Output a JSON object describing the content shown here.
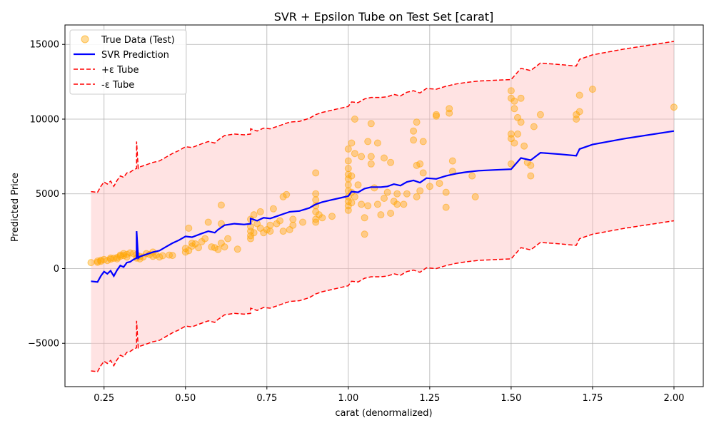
{
  "chart_data": {
    "type": "scatter",
    "title": "SVR + Epsilon Tube on Test Set [carat]",
    "xlabel": "carat (denormalized)",
    "ylabel": "Predicted Price",
    "xlim": [
      0.13,
      2.09
    ],
    "ylim": [
      -7900,
      16300
    ],
    "xticks": [
      0.25,
      0.5,
      0.75,
      1.0,
      1.25,
      1.5,
      1.75,
      2.0
    ],
    "xtick_labels": [
      "0.25",
      "0.50",
      "0.75",
      "1.00",
      "1.25",
      "1.50",
      "1.75",
      "2.00"
    ],
    "yticks": [
      -5000,
      0,
      5000,
      10000,
      15000
    ],
    "ytick_labels": [
      "−5000",
      "0",
      "5000",
      "10000",
      "15000"
    ],
    "grid": true,
    "legend_position": "top-left",
    "epsilon": 6000,
    "colors": {
      "points": "#ffa500",
      "prediction": "#0000ff",
      "tube": "#ff0000",
      "tube_fill": "#ffc0c0"
    },
    "series": [
      {
        "name": "True Data (Test)",
        "kind": "scatter",
        "points": [
          [
            0.21,
            400
          ],
          [
            0.23,
            420
          ],
          [
            0.23,
            500
          ],
          [
            0.24,
            560
          ],
          [
            0.24,
            480
          ],
          [
            0.25,
            610
          ],
          [
            0.26,
            540
          ],
          [
            0.27,
            700
          ],
          [
            0.27,
            620
          ],
          [
            0.28,
            690
          ],
          [
            0.29,
            740
          ],
          [
            0.29,
            650
          ],
          [
            0.3,
            900
          ],
          [
            0.3,
            820
          ],
          [
            0.31,
            870
          ],
          [
            0.31,
            1000
          ],
          [
            0.32,
            950
          ],
          [
            0.32,
            780
          ],
          [
            0.33,
            1050
          ],
          [
            0.34,
            1000
          ],
          [
            0.35,
            920
          ],
          [
            0.35,
            700
          ],
          [
            0.36,
            810
          ],
          [
            0.36,
            650
          ],
          [
            0.37,
            780
          ],
          [
            0.38,
            1000
          ],
          [
            0.39,
            940
          ],
          [
            0.4,
            820
          ],
          [
            0.4,
            1100
          ],
          [
            0.41,
            900
          ],
          [
            0.42,
            780
          ],
          [
            0.43,
            860
          ],
          [
            0.45,
            900
          ],
          [
            0.46,
            880
          ],
          [
            0.5,
            1100
          ],
          [
            0.5,
            1350
          ],
          [
            0.51,
            1200
          ],
          [
            0.51,
            2700
          ],
          [
            0.52,
            1700
          ],
          [
            0.52,
            1500
          ],
          [
            0.53,
            1650
          ],
          [
            0.54,
            1400
          ],
          [
            0.55,
            1800
          ],
          [
            0.56,
            2000
          ],
          [
            0.57,
            3100
          ],
          [
            0.58,
            1450
          ],
          [
            0.59,
            1400
          ],
          [
            0.6,
            1280
          ],
          [
            0.61,
            4250
          ],
          [
            0.61,
            3000
          ],
          [
            0.61,
            1700
          ],
          [
            0.62,
            1450
          ],
          [
            0.63,
            2000
          ],
          [
            0.66,
            1300
          ],
          [
            0.7,
            2000
          ],
          [
            0.7,
            2200
          ],
          [
            0.7,
            2500
          ],
          [
            0.7,
            2800
          ],
          [
            0.7,
            3300
          ],
          [
            0.71,
            2400
          ],
          [
            0.71,
            3600
          ],
          [
            0.72,
            3000
          ],
          [
            0.73,
            2700
          ],
          [
            0.73,
            3800
          ],
          [
            0.74,
            2400
          ],
          [
            0.75,
            2600
          ],
          [
            0.76,
            2500
          ],
          [
            0.76,
            2900
          ],
          [
            0.77,
            4000
          ],
          [
            0.78,
            3000
          ],
          [
            0.79,
            3200
          ],
          [
            0.8,
            2500
          ],
          [
            0.8,
            4800
          ],
          [
            0.81,
            4950
          ],
          [
            0.82,
            2600
          ],
          [
            0.83,
            3300
          ],
          [
            0.83,
            2900
          ],
          [
            0.86,
            3100
          ],
          [
            0.9,
            3100
          ],
          [
            0.9,
            3300
          ],
          [
            0.9,
            3800
          ],
          [
            0.9,
            4200
          ],
          [
            0.9,
            4600
          ],
          [
            0.9,
            5000
          ],
          [
            0.9,
            6400
          ],
          [
            0.91,
            3600
          ],
          [
            0.92,
            3400
          ],
          [
            0.95,
            3500
          ],
          [
            1.0,
            3900
          ],
          [
            1.0,
            4200
          ],
          [
            1.0,
            4500
          ],
          [
            1.0,
            4800
          ],
          [
            1.0,
            5200
          ],
          [
            1.0,
            5600
          ],
          [
            1.0,
            6000
          ],
          [
            1.0,
            6300
          ],
          [
            1.0,
            6700
          ],
          [
            1.0,
            7200
          ],
          [
            1.0,
            8000
          ],
          [
            1.01,
            4400
          ],
          [
            1.01,
            5100
          ],
          [
            1.01,
            6200
          ],
          [
            1.01,
            8400
          ],
          [
            1.02,
            4800
          ],
          [
            1.02,
            7700
          ],
          [
            1.02,
            10000
          ],
          [
            1.03,
            5600
          ],
          [
            1.04,
            7500
          ],
          [
            1.04,
            4300
          ],
          [
            1.05,
            3400
          ],
          [
            1.05,
            2300
          ],
          [
            1.06,
            8500
          ],
          [
            1.06,
            4200
          ],
          [
            1.07,
            7000
          ],
          [
            1.07,
            9700
          ],
          [
            1.07,
            7500
          ],
          [
            1.08,
            5400
          ],
          [
            1.09,
            4300
          ],
          [
            1.09,
            8400
          ],
          [
            1.1,
            3600
          ],
          [
            1.11,
            4700
          ],
          [
            1.11,
            7400
          ],
          [
            1.12,
            5100
          ],
          [
            1.13,
            3700
          ],
          [
            1.13,
            7100
          ],
          [
            1.14,
            4500
          ],
          [
            1.15,
            5000
          ],
          [
            1.15,
            4300
          ],
          [
            1.17,
            4300
          ],
          [
            1.18,
            5000
          ],
          [
            1.2,
            8600
          ],
          [
            1.2,
            9200
          ],
          [
            1.21,
            9800
          ],
          [
            1.21,
            6900
          ],
          [
            1.21,
            4800
          ],
          [
            1.22,
            5200
          ],
          [
            1.22,
            7000
          ],
          [
            1.23,
            8500
          ],
          [
            1.23,
            6400
          ],
          [
            1.25,
            5500
          ],
          [
            1.27,
            10300
          ],
          [
            1.27,
            10200
          ],
          [
            1.28,
            5700
          ],
          [
            1.3,
            5100
          ],
          [
            1.3,
            4100
          ],
          [
            1.31,
            10700
          ],
          [
            1.31,
            10400
          ],
          [
            1.32,
            6500
          ],
          [
            1.32,
            7200
          ],
          [
            1.38,
            6200
          ],
          [
            1.39,
            4800
          ],
          [
            1.5,
            11900
          ],
          [
            1.5,
            11400
          ],
          [
            1.5,
            9000
          ],
          [
            1.5,
            8700
          ],
          [
            1.5,
            7000
          ],
          [
            1.51,
            11200
          ],
          [
            1.51,
            10700
          ],
          [
            1.51,
            8400
          ],
          [
            1.52,
            10100
          ],
          [
            1.52,
            9000
          ],
          [
            1.53,
            11400
          ],
          [
            1.53,
            9800
          ],
          [
            1.54,
            8200
          ],
          [
            1.55,
            7100
          ],
          [
            1.56,
            6900
          ],
          [
            1.56,
            6200
          ],
          [
            1.57,
            9500
          ],
          [
            1.59,
            10300
          ],
          [
            1.7,
            10300
          ],
          [
            1.7,
            10000
          ],
          [
            1.71,
            11600
          ],
          [
            1.71,
            10500
          ],
          [
            1.75,
            12000
          ],
          [
            2.0,
            10800
          ]
        ]
      },
      {
        "name": "SVR Prediction",
        "kind": "line",
        "points": [
          [
            0.21,
            -850
          ],
          [
            0.23,
            -900
          ],
          [
            0.24,
            -500
          ],
          [
            0.25,
            -200
          ],
          [
            0.26,
            -350
          ],
          [
            0.27,
            -150
          ],
          [
            0.28,
            -500
          ],
          [
            0.29,
            -100
          ],
          [
            0.3,
            200
          ],
          [
            0.31,
            100
          ],
          [
            0.32,
            400
          ],
          [
            0.33,
            450
          ],
          [
            0.34,
            600
          ],
          [
            0.35,
            700
          ],
          [
            0.35,
            2500
          ],
          [
            0.355,
            700
          ],
          [
            0.36,
            800
          ],
          [
            0.38,
            950
          ],
          [
            0.4,
            1100
          ],
          [
            0.42,
            1200
          ],
          [
            0.44,
            1450
          ],
          [
            0.46,
            1700
          ],
          [
            0.48,
            1900
          ],
          [
            0.5,
            2150
          ],
          [
            0.52,
            2100
          ],
          [
            0.55,
            2350
          ],
          [
            0.57,
            2500
          ],
          [
            0.59,
            2400
          ],
          [
            0.6,
            2600
          ],
          [
            0.62,
            2900
          ],
          [
            0.65,
            3000
          ],
          [
            0.68,
            2950
          ],
          [
            0.7,
            3000
          ],
          [
            0.7,
            3350
          ],
          [
            0.72,
            3200
          ],
          [
            0.74,
            3400
          ],
          [
            0.76,
            3350
          ],
          [
            0.78,
            3500
          ],
          [
            0.8,
            3650
          ],
          [
            0.82,
            3800
          ],
          [
            0.85,
            3850
          ],
          [
            0.88,
            4050
          ],
          [
            0.9,
            4300
          ],
          [
            0.92,
            4450
          ],
          [
            0.95,
            4600
          ],
          [
            0.98,
            4750
          ],
          [
            1.0,
            4850
          ],
          [
            1.01,
            5150
          ],
          [
            1.03,
            5100
          ],
          [
            1.05,
            5350
          ],
          [
            1.07,
            5450
          ],
          [
            1.1,
            5450
          ],
          [
            1.12,
            5500
          ],
          [
            1.14,
            5650
          ],
          [
            1.16,
            5550
          ],
          [
            1.18,
            5800
          ],
          [
            1.2,
            5900
          ],
          [
            1.22,
            5750
          ],
          [
            1.24,
            6050
          ],
          [
            1.27,
            6000
          ],
          [
            1.3,
            6200
          ],
          [
            1.33,
            6350
          ],
          [
            1.36,
            6450
          ],
          [
            1.4,
            6550
          ],
          [
            1.45,
            6600
          ],
          [
            1.5,
            6650
          ],
          [
            1.53,
            7400
          ],
          [
            1.56,
            7250
          ],
          [
            1.59,
            7750
          ],
          [
            1.65,
            7650
          ],
          [
            1.7,
            7550
          ],
          [
            1.71,
            8000
          ],
          [
            1.75,
            8300
          ],
          [
            1.85,
            8700
          ],
          [
            2.0,
            9200
          ]
        ]
      },
      {
        "name": "+ε Tube",
        "kind": "line",
        "style": "dashed",
        "offset": 6000
      },
      {
        "name": "-ε Tube",
        "kind": "line",
        "style": "dashed",
        "offset": -6000
      }
    ]
  }
}
